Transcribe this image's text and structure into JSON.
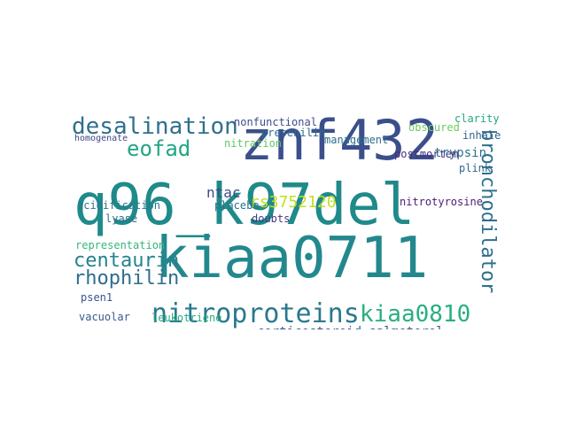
{
  "words": [
    {
      "text": "q96_k97del",
      "color": "#1f8a8a"
    },
    {
      "text": "kiaa0711",
      "color": "#23888e"
    },
    {
      "text": "znf432",
      "color": "#3b4f8c"
    },
    {
      "text": "nitroproteins",
      "color": "#2a788e"
    },
    {
      "text": "desalination",
      "color": "#2f6f8e"
    },
    {
      "text": "eofad",
      "color": "#21a685"
    },
    {
      "text": "bronchodilator",
      "color": "#2d708e"
    },
    {
      "text": "kiaa0810",
      "color": "#29af7f"
    },
    {
      "text": "centaurin",
      "color": "#26828e"
    },
    {
      "text": "rhophilin",
      "color": "#2e6e8e"
    },
    {
      "text": "rs3752120",
      "color": "#c2df23"
    },
    {
      "text": "corticosteroid-salmeterol",
      "color": "#3b528b"
    },
    {
      "text": "ntac",
      "color": "#3e4a89"
    },
    {
      "text": "clarity",
      "color": "#22a884"
    },
    {
      "text": "plink",
      "color": "#31688e"
    },
    {
      "text": "trypsin",
      "color": "#2c728e"
    },
    {
      "text": "nitrotyrosine",
      "color": "#482173"
    },
    {
      "text": "acidification",
      "color": "#2a778e"
    },
    {
      "text": "vacuolar",
      "color": "#375a8c"
    },
    {
      "text": "psen1",
      "color": "#3a548c"
    },
    {
      "text": "leukotriene",
      "color": "#28ae80"
    },
    {
      "text": "representation",
      "color": "#35b779"
    },
    {
      "text": "postmortem",
      "color": "#472d7b"
    },
    {
      "text": "doubts",
      "color": "#443983"
    },
    {
      "text": "lyase",
      "color": "#2c728e"
    },
    {
      "text": "placebo",
      "color": "#2b748e"
    },
    {
      "text": "nitration",
      "color": "#5ec962"
    },
    {
      "text": "presenilin",
      "color": "#2f6b8e"
    },
    {
      "text": "management",
      "color": "#2e6f8e"
    },
    {
      "text": "obscured",
      "color": "#6ccd5a"
    },
    {
      "text": "nonfunctional",
      "color": "#3e4c8a"
    },
    {
      "text": "homogenate",
      "color": "#414487"
    },
    {
      "text": "inhaled",
      "color": "#33638d"
    }
  ]
}
